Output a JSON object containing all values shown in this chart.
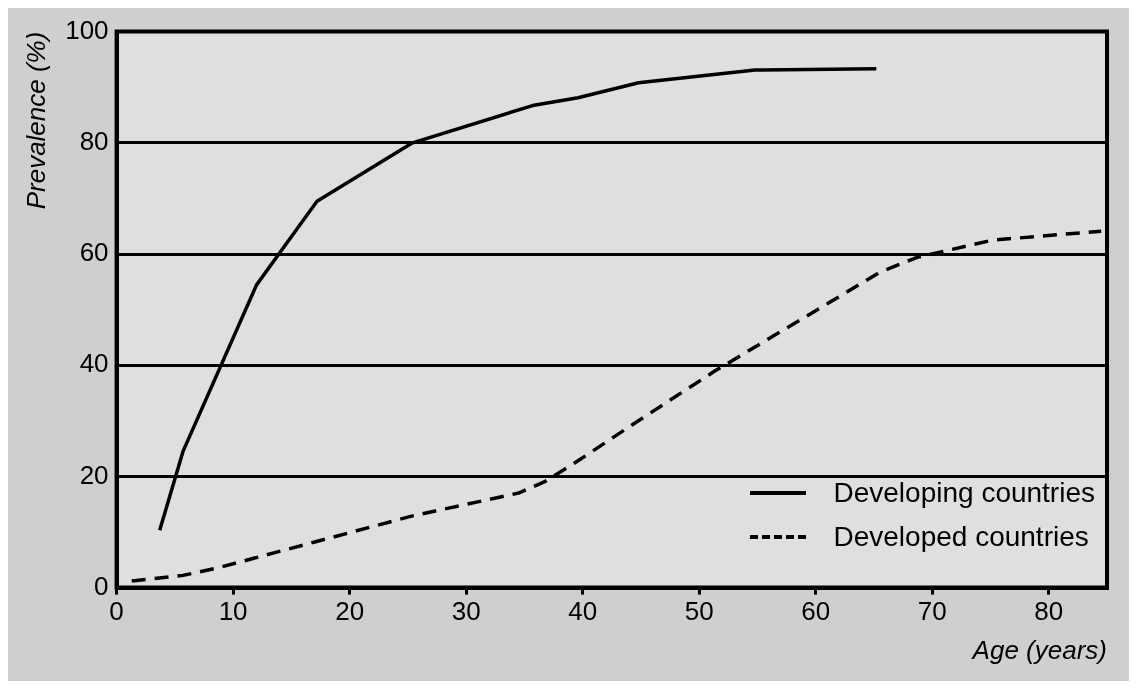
{
  "chart_data": {
    "type": "line",
    "xlabel": "Age (years)",
    "ylabel": "Prevalence (%)",
    "xlim": [
      0,
      85
    ],
    "xticks": [
      0,
      10,
      20,
      30,
      40,
      50,
      60,
      70,
      80
    ],
    "ylim": [
      0,
      100
    ],
    "yticks": [
      0,
      20,
      40,
      60,
      80,
      100
    ],
    "grid": "y",
    "legend": "bottom right",
    "marker": "none",
    "series": [
      {
        "name": "Developing countries",
        "color": "#000000",
        "line_style": "solid",
        "x": [
          3.7,
          5.7,
          12.0,
          17.2,
          25.4,
          35.7,
          39.6,
          44.8,
          54.8,
          65.2
        ],
        "values": [
          10.3,
          24.5,
          54.4,
          69.5,
          80,
          86.7,
          88.1,
          90.8,
          93.1,
          93.3
        ]
      },
      {
        "name": "Developed countries",
        "color": "#000000",
        "line_style": "dashed",
        "x": [
          1.3,
          5.7,
          8.6,
          17.0,
          25.4,
          34.5,
          36.7,
          39.6,
          44.2,
          51.3,
          65.5,
          68.7,
          75.2,
          84.5
        ],
        "values": [
          1.2,
          2.2,
          3.5,
          8.2,
          12.9,
          17.0,
          19.0,
          22.8,
          29.2,
          38.9,
          56.7,
          59.4,
          62.5,
          64.1
        ]
      }
    ]
  }
}
